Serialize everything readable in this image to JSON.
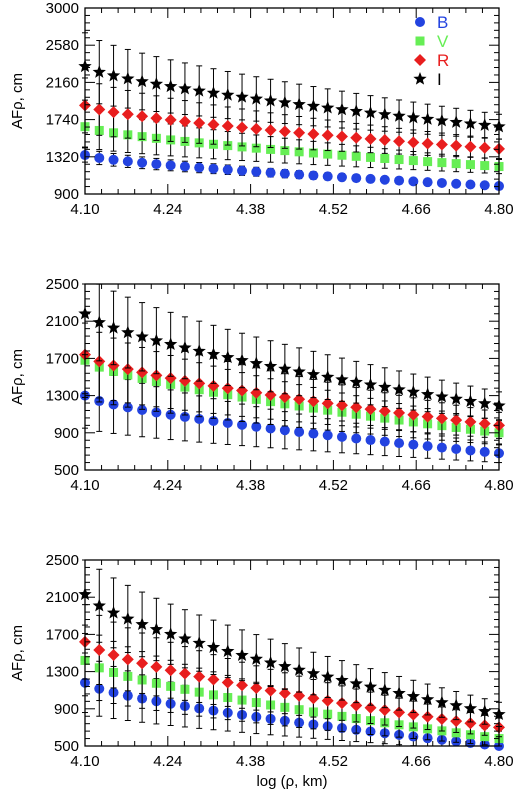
{
  "chart_data": [
    {
      "type": "scatter",
      "xlabel": "",
      "ylabel": "AFρ, cm",
      "xlim": [
        4.1,
        4.8
      ],
      "ylim": [
        900,
        3000
      ],
      "xticks": [
        "4.10",
        "4.24",
        "4.38",
        "4.52",
        "4.66",
        "4.80"
      ],
      "yticks": [
        "900",
        "1320",
        "1740",
        "2160",
        "2580",
        "3000"
      ],
      "legend": [
        "B",
        "V",
        "R",
        "I"
      ],
      "legend_position": "top-right",
      "n_points": 30,
      "series": [
        {
          "name": "B",
          "color": "#2343e0",
          "marker": "circle",
          "y_start": 1340,
          "y_end": 990,
          "err_start": 80,
          "err_end": 25
        },
        {
          "name": "V",
          "color": "#66ee55",
          "marker": "square",
          "y_start": 1660,
          "y_end": 1210,
          "err_start": 230,
          "err_end": 80
        },
        {
          "name": "R",
          "color": "#e81e1e",
          "marker": "diamond",
          "y_start": 1900,
          "y_end": 1410,
          "err_start": 310,
          "err_end": 110
        },
        {
          "name": "I",
          "color": "#000000",
          "marker": "star",
          "y_start": 2340,
          "y_end": 1660,
          "err_start": 380,
          "err_end": 140
        }
      ]
    },
    {
      "type": "scatter",
      "xlabel": "",
      "ylabel": "AFρ, cm",
      "xlim": [
        4.1,
        4.8
      ],
      "ylim": [
        500,
        2500
      ],
      "xticks": [
        "4.10",
        "4.24",
        "4.38",
        "4.52",
        "4.66",
        "4.80"
      ],
      "yticks": [
        "500",
        "900",
        "1300",
        "1700",
        "2100",
        "2500"
      ],
      "n_points": 30,
      "series": [
        {
          "name": "B",
          "color": "#2343e0",
          "marker": "circle",
          "y_start": 1300,
          "y_end": 680,
          "err_start": 350,
          "err_end": 100
        },
        {
          "name": "V",
          "color": "#66ee55",
          "marker": "square",
          "y_start": 1680,
          "y_end": 900,
          "err_start": 400,
          "err_end": 130
        },
        {
          "name": "R",
          "color": "#e81e1e",
          "marker": "diamond",
          "y_start": 1740,
          "y_end": 980,
          "err_start": 420,
          "err_end": 140
        },
        {
          "name": "I",
          "color": "#000000",
          "marker": "star",
          "y_start": 2180,
          "y_end": 1190,
          "err_start": 440,
          "err_end": 150
        }
      ]
    },
    {
      "type": "scatter",
      "xlabel": "log (ρ, km)",
      "ylabel": "AFρ, cm",
      "xlim": [
        4.1,
        4.8
      ],
      "ylim": [
        500,
        2500
      ],
      "xticks": [
        "4.10",
        "4.24",
        "4.38",
        "4.52",
        "4.66",
        "4.80"
      ],
      "yticks": [
        "500",
        "900",
        "1300",
        "1700",
        "2100",
        "2500"
      ],
      "n_points": 30,
      "series": [
        {
          "name": "B",
          "color": "#2343e0",
          "marker": "circle",
          "y_start": 1180,
          "y_end": 500,
          "err_start": 320,
          "err_end": 60
        },
        {
          "name": "V",
          "color": "#66ee55",
          "marker": "square",
          "y_start": 1420,
          "y_end": 580,
          "err_start": 380,
          "err_end": 80
        },
        {
          "name": "R",
          "color": "#e81e1e",
          "marker": "diamond",
          "y_start": 1620,
          "y_end": 700,
          "err_start": 400,
          "err_end": 100
        },
        {
          "name": "I",
          "color": "#000000",
          "marker": "star",
          "y_start": 2130,
          "y_end": 840,
          "err_start": 420,
          "err_end": 130
        }
      ]
    }
  ]
}
